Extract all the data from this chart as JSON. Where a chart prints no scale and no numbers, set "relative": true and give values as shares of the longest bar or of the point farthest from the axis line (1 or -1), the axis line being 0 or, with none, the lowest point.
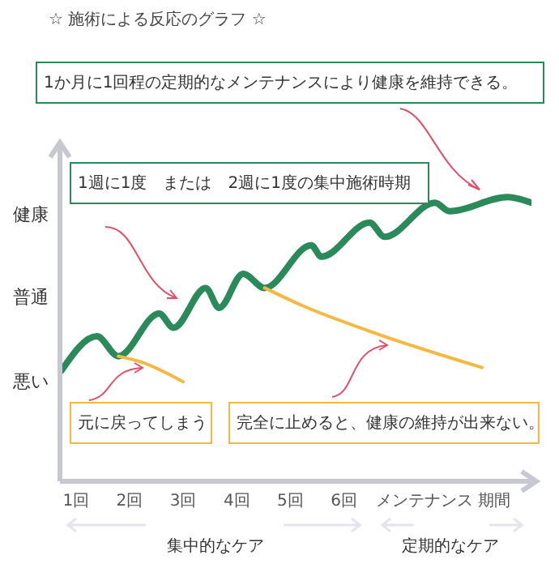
{
  "chart_data": {
    "type": "line",
    "title": "☆ 施術による反応のグラフ ☆",
    "xlim": [
      0.7,
      9.5
    ],
    "xticks": [
      {
        "value": 1,
        "label": "1回"
      },
      {
        "value": 2,
        "label": "2回"
      },
      {
        "value": 3,
        "label": "3回"
      },
      {
        "value": 4,
        "label": "4回"
      },
      {
        "value": 5,
        "label": "5回"
      },
      {
        "value": 6,
        "label": "6回"
      },
      {
        "value": 7.5,
        "label": "メンテナンス"
      },
      {
        "value": 8.8,
        "label": "期間"
      }
    ],
    "relative": true,
    "marker": "none",
    "line_style": "solid",
    "legend": false,
    "grid": false,
    "series": [
      {
        "color": "#2a8a5a",
        "x": [
          0.73,
          1.39,
          1.79,
          2.55,
          2.82,
          3.42,
          3.67,
          4.12,
          4.52,
          5.39,
          5.58,
          6.48,
          6.76,
          7.7,
          7.97,
          9.06,
          9.5
        ],
        "values": [
          0.39,
          0.51,
          0.44,
          0.59,
          0.54,
          0.68,
          0.61,
          0.73,
          0.68,
          0.83,
          0.79,
          0.91,
          0.86,
          0.98,
          0.95,
          1,
          0.98
        ]
      },
      {
        "color": "#f5b841",
        "x": [
          1.79,
          2.21,
          3.0
        ],
        "values": [
          0.44,
          0.42,
          0.35
        ]
      },
      {
        "color": "#f5b841",
        "x": [
          4.52,
          5.2,
          6.6,
          8.58
        ],
        "values": [
          0.68,
          0.62,
          0.52,
          0.4
        ]
      }
    ],
    "annotations": [
      "1か月に1回程の定期的なメンテナンスにより健康を維持できる。",
      "1週に1度　または　2週に1度の集中施術時期",
      "元に戻ってしまう",
      "完全に止めると、健康の維持が出来ない。",
      "集中的なケア",
      "定期的なケア",
      "健康",
      "普通",
      "悪い"
    ]
  }
}
